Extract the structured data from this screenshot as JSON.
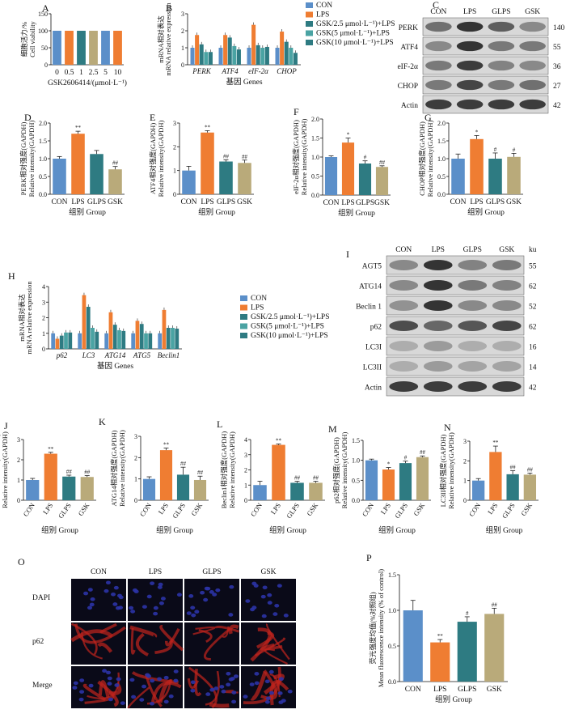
{
  "colors": {
    "con": "#5b8fc9",
    "lps": "#ef7d32",
    "glps": "#2e7b82",
    "glps_light": "#4aa3a3",
    "gsk": "#b9aa7a",
    "blot_band": "#2b2b2b",
    "blot_bg": "#d8d8d8",
    "fluor_dapi": "#2b33a6",
    "fluor_p62": "#c0241c"
  },
  "groups": [
    "CON",
    "LPS",
    "GLPS",
    "GSK"
  ],
  "panel_letters": [
    "A",
    "B",
    "C",
    "D",
    "E",
    "F",
    "G",
    "H",
    "I",
    "J",
    "K",
    "L",
    "M",
    "N",
    "O",
    "P"
  ],
  "chart_data": [
    {
      "id": "A",
      "type": "bar",
      "categories": [
        "0",
        "0.5",
        "1",
        "2.5",
        "5",
        "10"
      ],
      "values": [
        100,
        100,
        100,
        100,
        100,
        100
      ],
      "ylabel": "细胞活力/%",
      "ylabel2": "Cell viability",
      "xlabel": "GSK2606414/(μmol·L⁻¹)",
      "ylim": [
        0,
        150
      ],
      "yticks": [
        0,
        50,
        100,
        150
      ]
    },
    {
      "id": "B",
      "type": "bar",
      "categories": [
        "PERK",
        "ATF4",
        "eIF-2α",
        "CHOP"
      ],
      "series": [
        {
          "name": "CON",
          "values": [
            1,
            1,
            1,
            1
          ]
        },
        {
          "name": "LPS",
          "values": [
            1.75,
            1.75,
            2.35,
            1.95
          ]
        },
        {
          "name": "GSK/2.5 μmol·L⁻¹)+LPS",
          "values": [
            1.2,
            1.6,
            1.15,
            1.35
          ]
        },
        {
          "name": "GSK(5 μmol·L⁻¹)+LPS",
          "values": [
            0.75,
            1.1,
            1.0,
            1.0
          ]
        },
        {
          "name": "GSK(10 μmol·L⁻¹)+LPS",
          "values": [
            0.75,
            0.9,
            1.05,
            0.7
          ]
        }
      ],
      "ylabel": "mRNA相对表达",
      "ylabel2": "mRNA relative expression",
      "xlabel": "基因  Genes",
      "ylim": [
        0,
        3
      ],
      "yticks": [
        0,
        1,
        2,
        3
      ],
      "annotations": {
        "LPS": "**",
        "treated": "##"
      }
    },
    {
      "id": "D",
      "type": "bar",
      "categories": [
        "CON",
        "LPS",
        "GLPS",
        "GSK"
      ],
      "values": [
        1.0,
        1.7,
        1.13,
        0.7
      ],
      "errors": [
        0.06,
        0.07,
        0.1,
        0.08
      ],
      "annotations": [
        "",
        "**",
        "",
        "##"
      ],
      "ylabel": "PERK相对强度(GAPDH)",
      "ylabel2": "Relative intensity(GAPDH)",
      "xlabel": "组别  Group",
      "ylim": [
        0,
        2.0
      ],
      "yticks": [
        0.0,
        0.5,
        1.0,
        1.5,
        2.0
      ]
    },
    {
      "id": "E",
      "type": "bar",
      "categories": [
        "CON",
        "LPS",
        "GLPS",
        "GSK"
      ],
      "values": [
        1.0,
        2.6,
        1.38,
        1.32
      ],
      "errors": [
        0.18,
        0.08,
        0.07,
        0.12
      ],
      "annotations": [
        "",
        "**",
        "##",
        "##"
      ],
      "ylabel": "ATF4相对强度(GAPDH)",
      "ylabel2": "Relative intensity(GAPDH)",
      "xlabel": "组别  Group",
      "ylim": [
        0,
        3
      ],
      "yticks": [
        0,
        1,
        2,
        3
      ]
    },
    {
      "id": "F",
      "type": "bar",
      "categories": [
        "CON",
        "LPS",
        "GLPS",
        "GSK"
      ],
      "values": [
        1.0,
        1.38,
        0.83,
        0.74
      ],
      "errors": [
        0.03,
        0.12,
        0.07,
        0.03
      ],
      "annotations": [
        "",
        "*",
        "#",
        "##"
      ],
      "ylabel": "eIF-2α相对强度(GAPDH)",
      "ylabel2": "Relative intensity(GAPDH)",
      "xlabel": "组别  Group",
      "ylim": [
        0,
        2.0
      ],
      "yticks": [
        0.0,
        0.5,
        1.0,
        1.5,
        2.0
      ]
    },
    {
      "id": "G",
      "type": "bar",
      "categories": [
        "CON",
        "LPS",
        "GLPS",
        "GSK"
      ],
      "values": [
        1.0,
        1.55,
        1.0,
        1.05
      ],
      "errors": [
        0.13,
        0.1,
        0.16,
        0.1
      ],
      "annotations": [
        "",
        "*",
        "#",
        "#"
      ],
      "ylabel": "CHOP相对强度(GAPDH)",
      "ylabel2": "Relative intensity(GAPDH)",
      "xlabel": "组别  Group",
      "ylim": [
        0,
        2.0
      ],
      "yticks": [
        0.0,
        0.5,
        1.0,
        1.5,
        2.0
      ]
    },
    {
      "id": "H",
      "type": "bar",
      "categories": [
        "p62",
        "LC3",
        "ATG14",
        "ATG5",
        "Beclin1"
      ],
      "series": [
        {
          "name": "CON",
          "values": [
            1,
            1,
            1,
            1,
            1
          ]
        },
        {
          "name": "LPS",
          "values": [
            0.65,
            3.45,
            2.35,
            1.8,
            2.5
          ]
        },
        {
          "name": "GSK/2.5 μmol·L⁻¹)+LPS",
          "values": [
            0.85,
            2.7,
            1.55,
            1.6,
            1.35
          ]
        },
        {
          "name": "GSK(5 μmol·L⁻¹)+LPS",
          "values": [
            1.05,
            1.35,
            1.2,
            1.0,
            1.35
          ]
        },
        {
          "name": "GSK(10 μmol·L⁻¹)+LPS",
          "values": [
            1.05,
            1.1,
            1.15,
            1.0,
            1.3
          ]
        }
      ],
      "ylabel": "mRNA相对表达",
      "ylabel2": "mRNA relative expression",
      "xlabel": "基因  Genes",
      "ylim": [
        0,
        4
      ],
      "yticks": [
        0,
        1,
        2,
        3,
        4
      ]
    },
    {
      "id": "J",
      "type": "bar",
      "categories": [
        "CON",
        "LPS",
        "GLPS",
        "GSK"
      ],
      "values": [
        1.0,
        2.3,
        1.17,
        1.15
      ],
      "errors": [
        0.08,
        0.07,
        0.07,
        0.07
      ],
      "annotations": [
        "",
        "**",
        "##",
        "##"
      ],
      "ylabel": "ATG5相对强度(GAPDH)",
      "ylabel2": "Relative intensity(GAPDH)",
      "xlabel": "组别  Group",
      "ylim": [
        0,
        3
      ],
      "yticks": [
        0,
        1,
        2,
        3
      ]
    },
    {
      "id": "K",
      "type": "bar",
      "categories": [
        "CON",
        "LPS",
        "GLPS",
        "GSK"
      ],
      "values": [
        1.0,
        2.35,
        1.2,
        0.95
      ],
      "errors": [
        0.1,
        0.1,
        0.35,
        0.18
      ],
      "annotations": [
        "",
        "**",
        "##",
        "##"
      ],
      "ylabel": "ATG14相对强度(GAPDH)",
      "ylabel2": "Relative intensity(GAPDH)",
      "xlabel": "组别  Group",
      "ylim": [
        0,
        3
      ],
      "yticks": [
        0,
        1,
        2,
        3
      ]
    },
    {
      "id": "L",
      "type": "bar",
      "categories": [
        "CON",
        "LPS",
        "GLPS",
        "GSK"
      ],
      "values": [
        1.0,
        3.65,
        1.15,
        1.15
      ],
      "errors": [
        0.25,
        0.06,
        0.1,
        0.1
      ],
      "annotations": [
        "",
        "**",
        "##",
        "##"
      ],
      "ylabel": "Beclin1相对强度(GAPDH)",
      "ylabel2": "Relative intensity(GAPDH)",
      "xlabel": "组别  Group",
      "ylim": [
        0,
        4
      ],
      "yticks": [
        0,
        1,
        2,
        3,
        4
      ]
    },
    {
      "id": "M",
      "type": "bar",
      "categories": [
        "CON",
        "LPS",
        "GLPS",
        "GSK"
      ],
      "values": [
        1.0,
        0.77,
        0.93,
        1.08
      ],
      "errors": [
        0.03,
        0.05,
        0.05,
        0.03
      ],
      "annotations": [
        "",
        "*",
        "#",
        "##"
      ],
      "ylabel": "p62相对强度(GAPDH)",
      "ylabel2": "Relative intensity(GAPDH)",
      "xlabel": "组别  Group",
      "ylim": [
        0,
        1.5
      ],
      "yticks": [
        0.0,
        0.5,
        1.0,
        1.5
      ]
    },
    {
      "id": "N",
      "type": "bar",
      "categories": [
        "CON",
        "LPS",
        "GLPS",
        "GSK"
      ],
      "values": [
        1.0,
        2.45,
        1.32,
        1.3
      ],
      "errors": [
        0.1,
        0.3,
        0.18,
        0.08
      ],
      "annotations": [
        "",
        "**",
        "##",
        "##"
      ],
      "ylabel": "LC3II相对强度(GAPDH)",
      "ylabel2": "Relative intensity(GAPDH)",
      "xlabel": "组别  Group",
      "ylim": [
        0,
        3
      ],
      "yticks": [
        0,
        1,
        2,
        3
      ]
    },
    {
      "id": "P",
      "type": "bar",
      "categories": [
        "CON",
        "LPS",
        "GLPS",
        "GSK"
      ],
      "values": [
        1.0,
        0.55,
        0.84,
        0.95
      ],
      "errors": [
        0.14,
        0.04,
        0.07,
        0.08
      ],
      "annotations": [
        "",
        "**",
        "#",
        "##"
      ],
      "ylabel": "荧光强度均值(%对照组)",
      "ylabel2": "Mean fluorescence intensity (% of control)",
      "xlabel": "组别  Group",
      "ylim": [
        0,
        1.5
      ],
      "yticks": [
        0.0,
        0.5,
        1.0,
        1.5
      ]
    }
  ],
  "blots": [
    {
      "id": "C",
      "lanes": [
        "CON",
        "LPS",
        "GLPS",
        "GSK"
      ],
      "bands": [
        {
          "name": "PERK",
          "kd": "140",
          "intensity": [
            0.6,
            0.95,
            0.7,
            0.45
          ]
        },
        {
          "name": "ATF4",
          "kd": "55",
          "intensity": [
            0.45,
            0.95,
            0.55,
            0.55
          ]
        },
        {
          "name": "eIF-2α",
          "kd": "36",
          "intensity": [
            0.55,
            0.9,
            0.5,
            0.45
          ]
        },
        {
          "name": "CHOP",
          "kd": "27",
          "intensity": [
            0.55,
            0.85,
            0.55,
            0.6
          ]
        },
        {
          "name": "Actin",
          "kd": "42",
          "intensity": [
            0.9,
            0.9,
            0.9,
            0.9
          ]
        }
      ]
    },
    {
      "id": "I",
      "lanes": [
        "CON",
        "LPS",
        "GLPS",
        "GSK"
      ],
      "units": "ku",
      "bands": [
        {
          "name": "AGT5",
          "kd": "55",
          "intensity": [
            0.45,
            0.95,
            0.5,
            0.55
          ]
        },
        {
          "name": "ATG14",
          "kd": "62",
          "intensity": [
            0.45,
            0.95,
            0.55,
            0.5
          ]
        },
        {
          "name": "Beclin 1",
          "kd": "52",
          "intensity": [
            0.4,
            0.95,
            0.45,
            0.45
          ]
        },
        {
          "name": "p62",
          "kd": "62",
          "intensity": [
            0.8,
            0.65,
            0.75,
            0.85
          ]
        },
        {
          "name": "LC3I",
          "kd": "16",
          "intensity": [
            0.25,
            0.35,
            0.25,
            0.25
          ]
        },
        {
          "name": "LC3II",
          "kd": "14",
          "intensity": [
            0.25,
            0.35,
            0.3,
            0.3
          ]
        },
        {
          "name": "Actin",
          "kd": "42",
          "intensity": [
            0.9,
            0.9,
            0.9,
            0.9
          ]
        }
      ]
    }
  ],
  "fluorescence": {
    "id": "O",
    "columns": [
      "CON",
      "LPS",
      "GLPS",
      "GSK"
    ],
    "rows": [
      "DAPI",
      "p62",
      "Merge"
    ]
  }
}
